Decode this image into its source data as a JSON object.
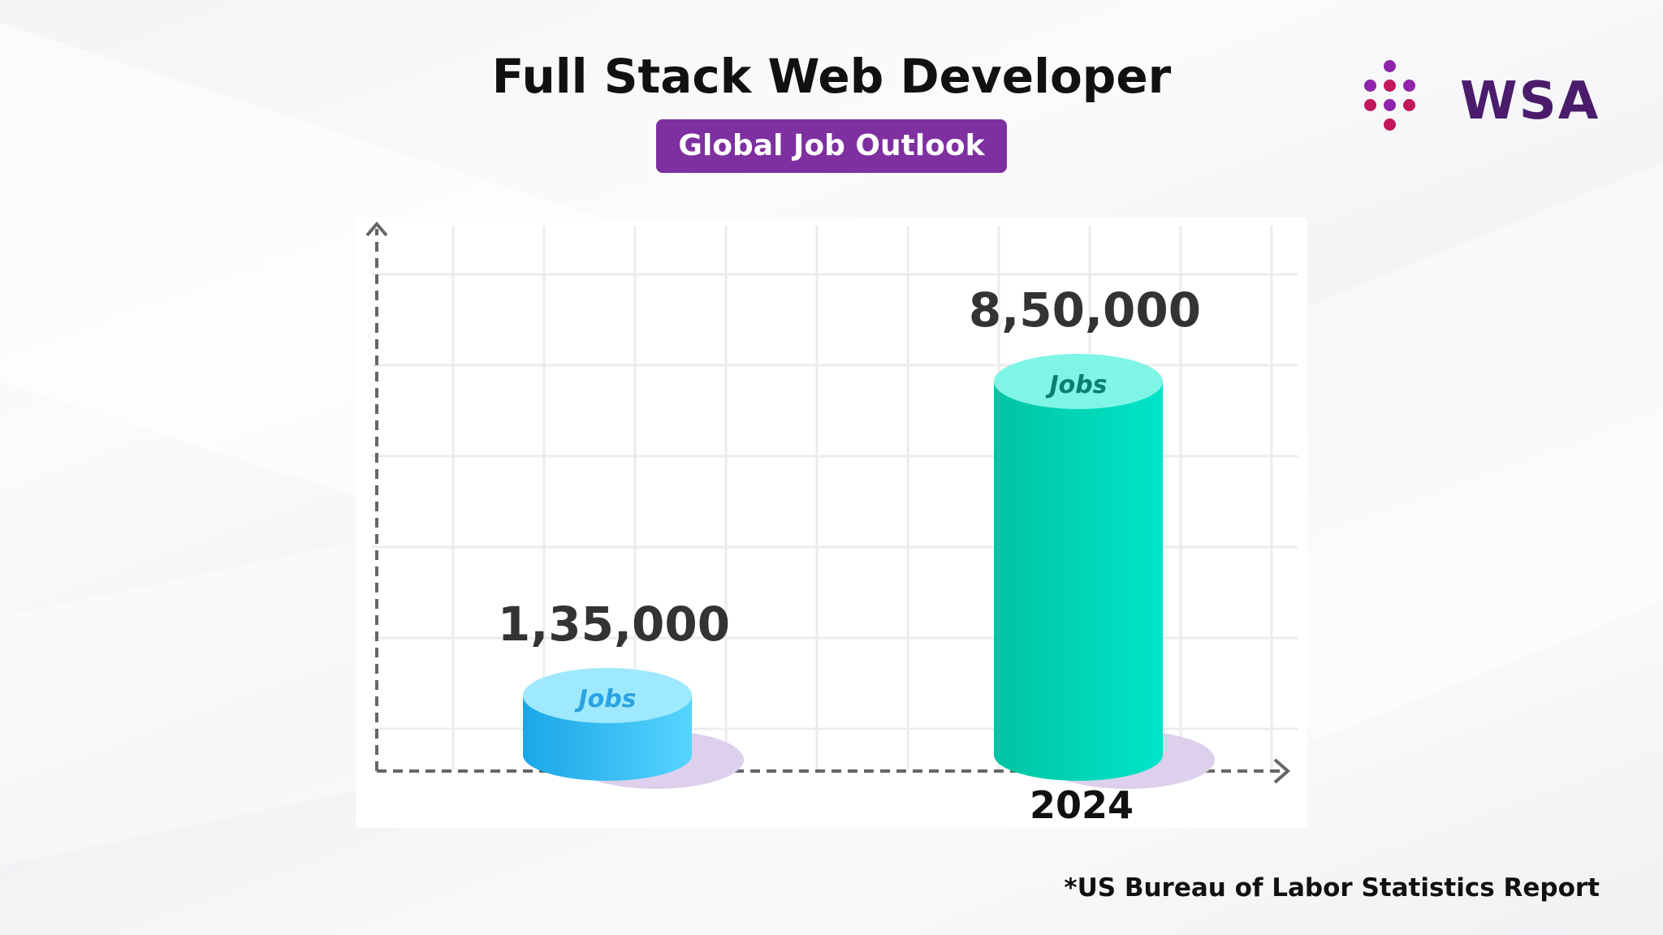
{
  "header": {
    "title": "Full Stack Web Developer",
    "subtitle": "Global Job Outlook"
  },
  "logo": {
    "text": "WSA",
    "dot_colors": [
      "#c2185b",
      "#8e24aa"
    ]
  },
  "colors": {
    "bar_left_side": "#1aa6e6",
    "bar_left_side_light": "#55d4ff",
    "bar_left_top": "#9fe9ff",
    "bar_left_label": "#2aa3e0",
    "bar_right_side": "#00c4a2",
    "bar_right_side_light": "#00e5c9",
    "bar_right_top": "#7ff5e6",
    "bar_right_label": "#087f70",
    "shadow": "#ddd0ec",
    "axis": "#666666",
    "grid": "#ececef"
  },
  "chart_data": {
    "type": "bar",
    "categories": [
      "",
      "2024"
    ],
    "values": [
      135000,
      850000
    ],
    "value_labels": [
      "1,35,000",
      "8,50,000"
    ],
    "bar_top_label": "Jobs",
    "title": "Full Stack Web Developer",
    "subtitle": "Global Job Outlook",
    "xlabel": "",
    "ylabel": "",
    "grid": true
  },
  "footer": {
    "source": "*US Bureau of Labor Statistics Report"
  }
}
